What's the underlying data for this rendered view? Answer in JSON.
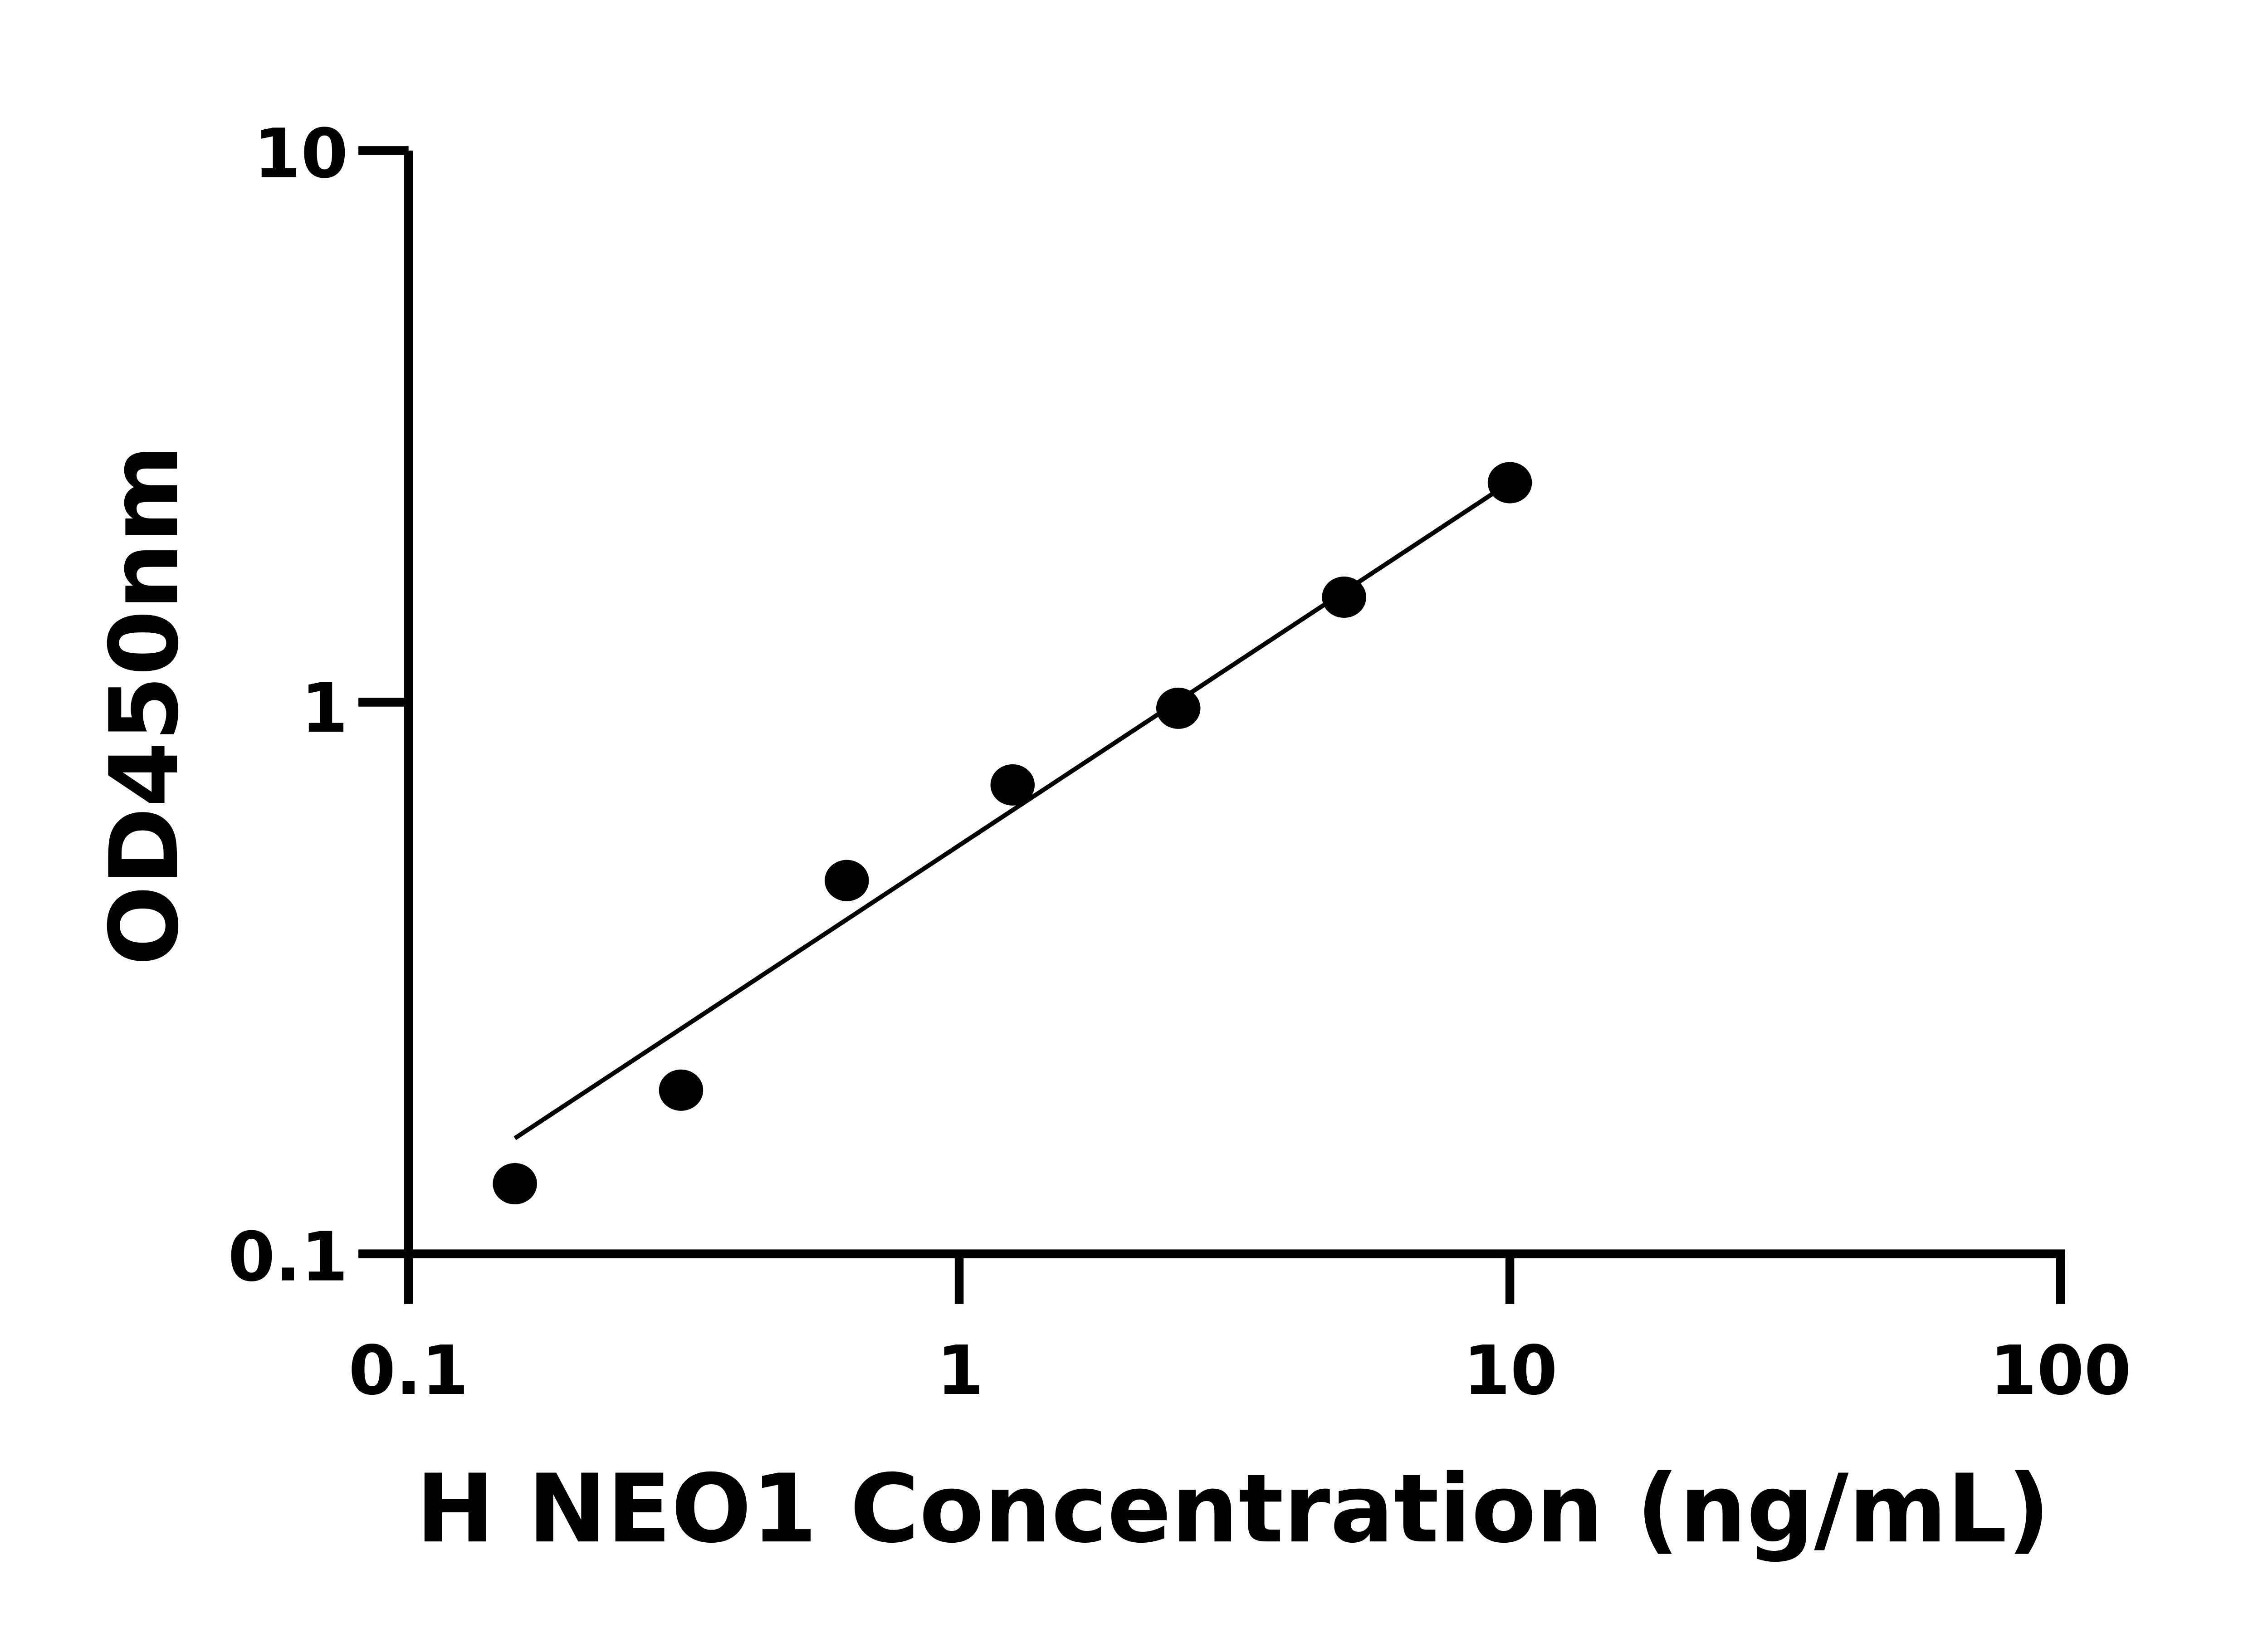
{
  "chart_data": {
    "type": "scatter",
    "title": "",
    "xlabel": "H NEO1 Concentration (ng/mL)",
    "ylabel": "OD450nm",
    "x_scale": "log",
    "y_scale": "log",
    "xlim": [
      0.1,
      100
    ],
    "ylim": [
      0.1,
      10
    ],
    "x_ticks": [
      "0.1",
      "1",
      "10",
      "100"
    ],
    "y_ticks": [
      "0.1",
      "1",
      "10"
    ],
    "grid": false,
    "series": [
      {
        "points": [
          {
            "x": 0.156,
            "y": 0.134
          },
          {
            "x": 0.3125,
            "y": 0.198
          },
          {
            "x": 0.625,
            "y": 0.475
          },
          {
            "x": 1.25,
            "y": 0.708
          },
          {
            "x": 2.5,
            "y": 0.975
          },
          {
            "x": 5,
            "y": 1.55
          },
          {
            "x": 10,
            "y": 2.5
          }
        ]
      }
    ],
    "fit_line": {
      "x": [
        0.156,
        9.5
      ],
      "y": [
        0.162,
        2.42
      ]
    },
    "colors": {
      "marks": "#000000",
      "background": "#ffffff"
    }
  }
}
